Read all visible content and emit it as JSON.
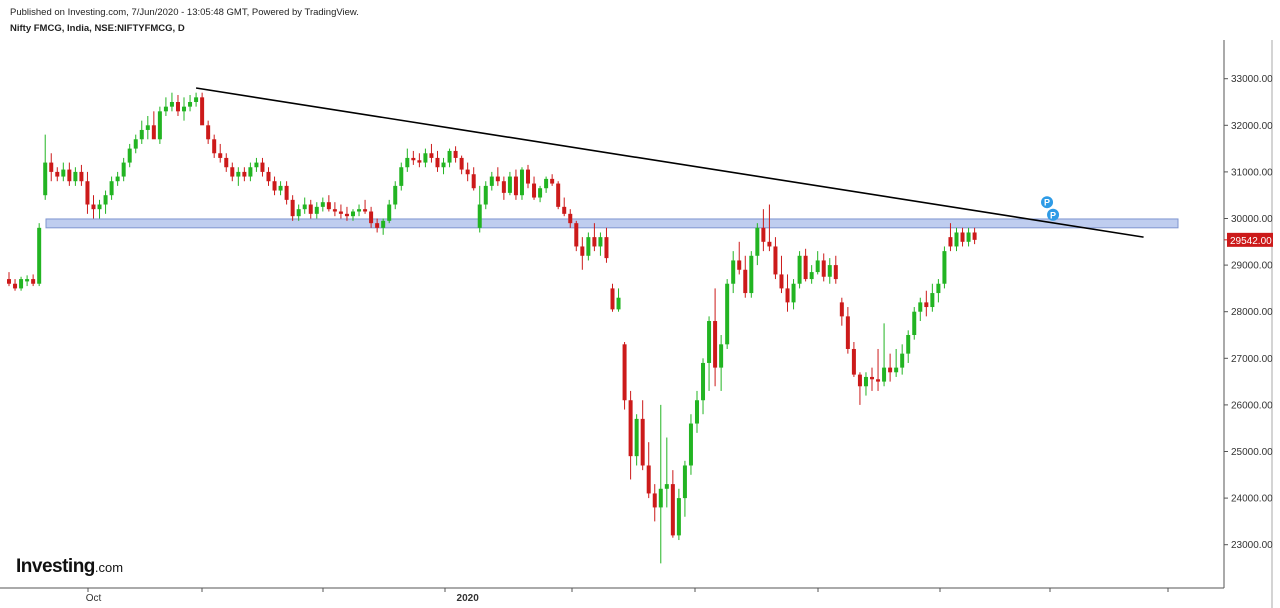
{
  "header": {
    "published": "Published on Investing.com, 7/Jun/2020 - 13:05:48 GMT, Powered by TradingView.",
    "symbol": "Nifty FMCG, India, NSE:NIFTYFMCG, D"
  },
  "logo": {
    "main": "Investing",
    "suffix": ".com"
  },
  "colors": {
    "up": "#22b422",
    "down": "#cc1a1a",
    "support_band": "#b4c4ec",
    "trendline": "#000000",
    "marker": "#2e9be6",
    "last_price_bg": "#cc1a1a"
  },
  "chart_data": {
    "type": "candlestick",
    "title": "Nifty FMCG, India, NSE:NIFTYFMCG, D",
    "ylim": [
      22000,
      34000
    ],
    "yticks": [
      "33000.00",
      "32000.00",
      "31000.00",
      "30000.00",
      "29000.00",
      "28000.00",
      "27000.00",
      "26000.00",
      "25000.00",
      "24000.00",
      "23000.00"
    ],
    "ytick_values": [
      33000,
      32000,
      31000,
      30000,
      29000,
      28000,
      27000,
      26000,
      25000,
      24000,
      23000
    ],
    "xlabels": [
      {
        "text": "Oct",
        "index": 14,
        "bold": false
      },
      {
        "text": "2020",
        "index": 76,
        "bold": true
      }
    ],
    "last_price": {
      "label": "29542.00",
      "value": 29542
    },
    "support_band": {
      "low": 29800,
      "high": 29990
    },
    "trendline": {
      "start": {
        "index": 31,
        "value": 32800
      },
      "end": {
        "index": 188,
        "value": 29600
      }
    },
    "markers": [
      {
        "label": "P",
        "index": 172,
        "value": 30350
      },
      {
        "label": "P",
        "index": 173,
        "value": 30080
      }
    ],
    "candles": [
      [
        28700,
        28850,
        28550,
        28600
      ],
      [
        28600,
        28700,
        28450,
        28500
      ],
      [
        28500,
        28750,
        28450,
        28700
      ],
      [
        28650,
        28780,
        28550,
        28700
      ],
      [
        28700,
        28800,
        28550,
        28600
      ],
      [
        28600,
        29900,
        28550,
        29800
      ],
      [
        30500,
        31800,
        30400,
        31200
      ],
      [
        31200,
        31400,
        30800,
        31000
      ],
      [
        31000,
        31100,
        30800,
        30900
      ],
      [
        30900,
        31200,
        30800,
        31050
      ],
      [
        31050,
        31200,
        30700,
        30800
      ],
      [
        30800,
        31100,
        30700,
        31000
      ],
      [
        31000,
        31150,
        30700,
        30800
      ],
      [
        30800,
        31000,
        30100,
        30300
      ],
      [
        30300,
        30500,
        30000,
        30200
      ],
      [
        30200,
        30400,
        30000,
        30300
      ],
      [
        30300,
        30600,
        30100,
        30500
      ],
      [
        30500,
        30900,
        30400,
        30800
      ],
      [
        30800,
        31000,
        30700,
        30900
      ],
      [
        30900,
        31300,
        30800,
        31200
      ],
      [
        31200,
        31600,
        31100,
        31500
      ],
      [
        31500,
        31800,
        31400,
        31700
      ],
      [
        31700,
        32100,
        31600,
        31900
      ],
      [
        31900,
        32200,
        31700,
        32000
      ],
      [
        32000,
        32300,
        31800,
        31700
      ],
      [
        31700,
        32400,
        31600,
        32300
      ],
      [
        32300,
        32600,
        32200,
        32400
      ],
      [
        32400,
        32700,
        32300,
        32500
      ],
      [
        32500,
        32650,
        32200,
        32300
      ],
      [
        32300,
        32600,
        32100,
        32400
      ],
      [
        32400,
        32650,
        32300,
        32500
      ],
      [
        32500,
        32700,
        32400,
        32600
      ],
      [
        32600,
        32700,
        32100,
        32000
      ],
      [
        32000,
        32100,
        31600,
        31700
      ],
      [
        31700,
        31800,
        31300,
        31400
      ],
      [
        31400,
        31600,
        31200,
        31300
      ],
      [
        31300,
        31400,
        31000,
        31100
      ],
      [
        31100,
        31200,
        30800,
        30900
      ],
      [
        30900,
        31100,
        30700,
        31000
      ],
      [
        31000,
        31100,
        30800,
        30900
      ],
      [
        30900,
        31200,
        30800,
        31100
      ],
      [
        31100,
        31300,
        31000,
        31200
      ],
      [
        31200,
        31300,
        30900,
        31000
      ],
      [
        31000,
        31100,
        30700,
        30800
      ],
      [
        30800,
        30900,
        30500,
        30600
      ],
      [
        30600,
        30800,
        30500,
        30700
      ],
      [
        30700,
        30800,
        30300,
        30400
      ],
      [
        30400,
        30500,
        29950,
        30050
      ],
      [
        30050,
        30300,
        29950,
        30200
      ],
      [
        30200,
        30450,
        30100,
        30300
      ],
      [
        30300,
        30400,
        30000,
        30100
      ],
      [
        30100,
        30350,
        30000,
        30250
      ],
      [
        30250,
        30450,
        30150,
        30350
      ],
      [
        30350,
        30500,
        30150,
        30200
      ],
      [
        30200,
        30350,
        30050,
        30150
      ],
      [
        30150,
        30300,
        30000,
        30100
      ],
      [
        30100,
        30250,
        29950,
        30050
      ],
      [
        30050,
        30200,
        29950,
        30150
      ],
      [
        30150,
        30300,
        30050,
        30200
      ],
      [
        30200,
        30400,
        30100,
        30150
      ],
      [
        30150,
        30250,
        29800,
        29900
      ],
      [
        29900,
        30000,
        29700,
        29800
      ],
      [
        29800,
        30000,
        29650,
        29950
      ],
      [
        29950,
        30400,
        29900,
        30300
      ],
      [
        30300,
        30800,
        30200,
        30700
      ],
      [
        30700,
        31200,
        30600,
        31100
      ],
      [
        31100,
        31500,
        31000,
        31300
      ],
      [
        31300,
        31450,
        31150,
        31250
      ],
      [
        31250,
        31400,
        31100,
        31200
      ],
      [
        31200,
        31500,
        31100,
        31400
      ],
      [
        31400,
        31600,
        31200,
        31300
      ],
      [
        31300,
        31450,
        31000,
        31100
      ],
      [
        31100,
        31300,
        30950,
        31200
      ],
      [
        31200,
        31500,
        31100,
        31450
      ],
      [
        31450,
        31550,
        31200,
        31300
      ],
      [
        31300,
        31350,
        30950,
        31050
      ],
      [
        31050,
        31200,
        30800,
        30950
      ],
      [
        30950,
        31100,
        30600,
        30650
      ],
      [
        29800,
        30700,
        29700,
        30300
      ],
      [
        30300,
        30800,
        30200,
        30700
      ],
      [
        30700,
        31000,
        30600,
        30900
      ],
      [
        30900,
        31100,
        30700,
        30800
      ],
      [
        30800,
        30900,
        30400,
        30550
      ],
      [
        30550,
        31000,
        30500,
        30900
      ],
      [
        30900,
        31050,
        30400,
        30500
      ],
      [
        30500,
        31100,
        30400,
        31050
      ],
      [
        31050,
        31150,
        30650,
        30750
      ],
      [
        30750,
        30900,
        30400,
        30450
      ],
      [
        30450,
        30700,
        30350,
        30650
      ],
      [
        30650,
        30900,
        30550,
        30850
      ],
      [
        30850,
        30950,
        30700,
        30750
      ],
      [
        30750,
        30800,
        30200,
        30250
      ],
      [
        30250,
        30450,
        30050,
        30100
      ],
      [
        30100,
        30200,
        29800,
        29900
      ],
      [
        29900,
        29950,
        29300,
        29400
      ],
      [
        29400,
        29600,
        28900,
        29200
      ],
      [
        29200,
        29700,
        29100,
        29600
      ],
      [
        29600,
        29900,
        29300,
        29400
      ],
      [
        29400,
        29700,
        29200,
        29600
      ],
      [
        29600,
        29800,
        29050,
        29150
      ],
      [
        28500,
        28600,
        28000,
        28050
      ],
      [
        28050,
        28500,
        28000,
        28300
      ],
      [
        27300,
        27350,
        25900,
        26100
      ],
      [
        26100,
        26300,
        24400,
        24900
      ],
      [
        24900,
        25800,
        24700,
        25700
      ],
      [
        25700,
        26100,
        24600,
        24700
      ],
      [
        24700,
        25200,
        24000,
        24100
      ],
      [
        24100,
        24300,
        23500,
        23800
      ],
      [
        23800,
        26000,
        22600,
        24200
      ],
      [
        24200,
        25300,
        23800,
        24300
      ],
      [
        24300,
        24600,
        23150,
        23200
      ],
      [
        23200,
        24200,
        23100,
        24000
      ],
      [
        24000,
        24800,
        23600,
        24700
      ],
      [
        24700,
        25800,
        24500,
        25600
      ],
      [
        25600,
        26300,
        25400,
        26100
      ],
      [
        26100,
        27000,
        25800,
        26900
      ],
      [
        26900,
        27900,
        26300,
        27800
      ],
      [
        27800,
        28500,
        26400,
        26800
      ],
      [
        26800,
        27500,
        26300,
        27300
      ],
      [
        27300,
        28700,
        27200,
        28600
      ],
      [
        28600,
        29300,
        28400,
        29100
      ],
      [
        29100,
        29500,
        28800,
        28900
      ],
      [
        28900,
        29200,
        28300,
        28400
      ],
      [
        28400,
        29300,
        28300,
        29200
      ],
      [
        29200,
        29900,
        29000,
        29800
      ],
      [
        29800,
        30200,
        29300,
        29500
      ],
      [
        29500,
        30300,
        29300,
        29400
      ],
      [
        29400,
        29600,
        28700,
        28800
      ],
      [
        28800,
        29200,
        28400,
        28500
      ],
      [
        28500,
        28800,
        28000,
        28200
      ],
      [
        28200,
        28700,
        28050,
        28600
      ],
      [
        28600,
        29300,
        28500,
        29200
      ],
      [
        29200,
        29350,
        28650,
        28700
      ],
      [
        28700,
        29000,
        28600,
        28850
      ],
      [
        28850,
        29300,
        28800,
        29100
      ],
      [
        29100,
        29250,
        28650,
        28750
      ],
      [
        28750,
        29150,
        28600,
        29000
      ],
      [
        29000,
        29200,
        28600,
        28700
      ],
      [
        28200,
        28300,
        27700,
        27900
      ],
      [
        27900,
        28100,
        27100,
        27200
      ],
      [
        27200,
        27350,
        26600,
        26650
      ],
      [
        26650,
        26700,
        26000,
        26400
      ],
      [
        26400,
        26700,
        26200,
        26600
      ],
      [
        26600,
        26800,
        26300,
        26550
      ],
      [
        26550,
        27200,
        26300,
        26500
      ],
      [
        26500,
        27750,
        26400,
        26800
      ],
      [
        26800,
        27100,
        26500,
        26700
      ],
      [
        26700,
        27200,
        26600,
        26800
      ],
      [
        26800,
        27300,
        26650,
        27100
      ],
      [
        27100,
        27600,
        26900,
        27500
      ],
      [
        27500,
        28100,
        27400,
        28000
      ],
      [
        28000,
        28300,
        27800,
        28200
      ],
      [
        28200,
        28450,
        27900,
        28100
      ],
      [
        28100,
        28600,
        28000,
        28400
      ],
      [
        28400,
        28700,
        28200,
        28600
      ],
      [
        28600,
        29400,
        28500,
        29300
      ],
      [
        29600,
        29900,
        29300,
        29400
      ],
      [
        29400,
        29800,
        29300,
        29700
      ],
      [
        29700,
        29800,
        29400,
        29500
      ],
      [
        29500,
        29800,
        29400,
        29700
      ],
      [
        29700,
        29800,
        29450,
        29542
      ]
    ]
  }
}
